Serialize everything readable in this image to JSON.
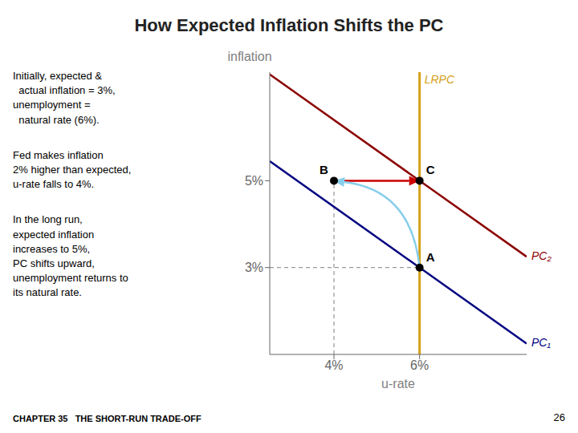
{
  "chart_data": {
    "type": "line",
    "title": "How Expected Inflation Shifts the PC",
    "text_blocks": [
      "Initially, expected &\n  actual inflation = 3%,\nunemployment =\n  natural rate (6%).",
      "Fed makes inflation\n2% higher than expected,\nu-rate falls to 4%.",
      "In the long run,\nexpected inflation\nincreases to 5%,\nPC shifts upward,\nunemployment returns to\nits natural rate."
    ],
    "footer_left": "CHAPTER 35   THE SHORT-RUN TRADE-OFF",
    "footer_right": "26",
    "xlabel": "u-rate",
    "ylabel": "inflation",
    "xlim": [
      2.5,
      8.5
    ],
    "xticks": [
      {
        "value": 4,
        "label": "4%"
      },
      {
        "value": 6,
        "label": "6%"
      }
    ],
    "ylim": [
      1,
      7.5
    ],
    "yticks": [
      {
        "value": 3,
        "label": "3%"
      },
      {
        "value": 5,
        "label": "5%"
      }
    ],
    "series": [
      {
        "type": "line",
        "line_style": "dashed",
        "color": "#808080",
        "x": [
          4,
          6
        ],
        "values": [
          5,
          5
        ]
      },
      {
        "type": "line",
        "line_style": "dashed",
        "color": "#808080",
        "x": [
          2.5,
          6
        ],
        "values": [
          3,
          3
        ]
      },
      {
        "type": "line",
        "line_style": "dashed",
        "color": "#808080",
        "x": [
          4,
          4
        ],
        "values": [
          1,
          5
        ]
      },
      {
        "name": "LRPC",
        "type": "line",
        "color": "#D4A017",
        "x": [
          6,
          6
        ],
        "values": [
          1,
          7.5
        ]
      },
      {
        "name": "PC₁",
        "type": "line",
        "color": "#000080",
        "x": [
          2.5,
          8.5
        ],
        "values": [
          5.45,
          1.25
        ]
      },
      {
        "name": "PC₂",
        "type": "line",
        "color": "#8B0000",
        "x": [
          2.5,
          8.5
        ],
        "values": [
          7.45,
          3.25
        ]
      },
      {
        "name": "A",
        "type": "scatter",
        "color": "#000000",
        "x": [
          6
        ],
        "values": [
          3
        ]
      },
      {
        "name": "B",
        "type": "scatter",
        "color": "#000000",
        "x": [
          4
        ],
        "values": [
          5
        ]
      },
      {
        "name": "C",
        "type": "scatter",
        "color": "#000000",
        "x": [
          6
        ],
        "values": [
          5
        ]
      }
    ],
    "arrows": [
      {
        "from": [
          4,
          5
        ],
        "to": [
          6,
          5
        ],
        "color": "#CC0000",
        "line_style": "solid"
      },
      {
        "from": [
          6,
          3
        ],
        "to": [
          4,
          5
        ],
        "color": "#87CEEB",
        "line_style": "curved"
      }
    ]
  }
}
